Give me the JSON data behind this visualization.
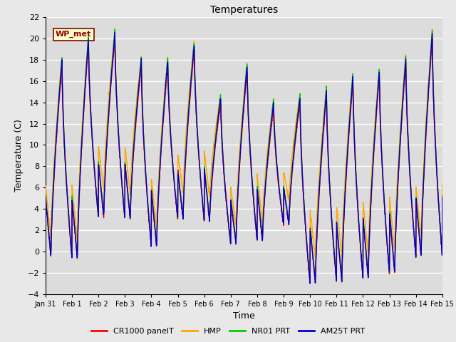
{
  "title": "Temperatures",
  "xlabel": "Time",
  "ylabel": "Temperature (C)",
  "ylim": [
    -4,
    22
  ],
  "yticks": [
    -4,
    -2,
    0,
    2,
    4,
    6,
    8,
    10,
    12,
    14,
    16,
    18,
    20,
    22
  ],
  "xtick_labels": [
    "Jan 31",
    "Feb 1",
    "Feb 2",
    "Feb 3",
    "Feb 4",
    "Feb 5",
    "Feb 6",
    "Feb 7",
    "Feb 8",
    "Feb 9",
    "Feb 10",
    "Feb 11",
    "Feb 12",
    "Feb 13",
    "Feb 14",
    "Feb 15"
  ],
  "annotation_text": "WP_met",
  "annotation_color": "#8B0000",
  "annotation_bg": "#FFFFCC",
  "annotation_border": "#8B0000",
  "series": {
    "CR1000 panelT": {
      "color": "#FF0000",
      "lw": 1.0
    },
    "HMP": {
      "color": "#FFA500",
      "lw": 1.0
    },
    "NR01 PRT": {
      "color": "#00CC00",
      "lw": 1.0
    },
    "AM25T PRT": {
      "color": "#0000CC",
      "lw": 1.0
    }
  },
  "bg_color": "#DCDCDC",
  "fig_bg": "#E8E8E8",
  "grid_color": "#FFFFFF",
  "grid_lw": 1.0
}
